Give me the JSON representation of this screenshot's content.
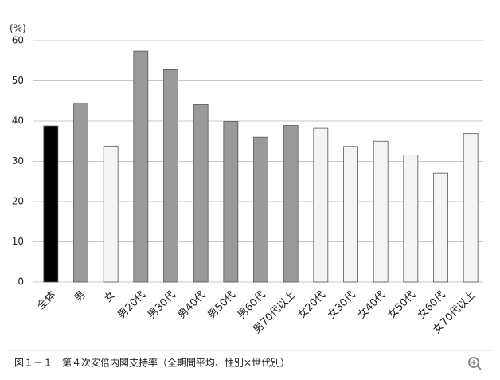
{
  "chart_data": {
    "type": "bar",
    "y_label": "(%)",
    "caption": "図１－１　第４次安倍内閣支持率（全期間平均、性別×世代別）",
    "categories": [
      "全体",
      "男",
      "女",
      "男20代",
      "男30代",
      "男40代",
      "男50代",
      "男60代",
      "男70代以上",
      "女20代",
      "女30代",
      "女40代",
      "女50代",
      "女60代",
      "女70代以上"
    ],
    "values": [
      38.8,
      44.4,
      33.8,
      57.4,
      52.8,
      44.1,
      39.9,
      36.0,
      38.9,
      38.2,
      33.7,
      35.0,
      31.6,
      27.1,
      36.9
    ],
    "colors": [
      "#000000",
      "#9a9a9a",
      "#f4f4f4",
      "#9a9a9a",
      "#9a9a9a",
      "#9a9a9a",
      "#9a9a9a",
      "#9a9a9a",
      "#9a9a9a",
      "#f4f4f4",
      "#f4f4f4",
      "#f4f4f4",
      "#f4f4f4",
      "#f4f4f4",
      "#f4f4f4"
    ],
    "ylim": [
      0,
      60
    ],
    "yticks": [
      0,
      10,
      20,
      30,
      40,
      50,
      60
    ],
    "grid": true
  }
}
